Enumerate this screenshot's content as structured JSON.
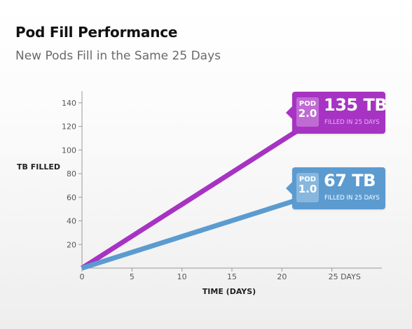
{
  "header": {
    "title": "Pod Fill Performance",
    "subtitle": "New Pods Fill in the Same 25 Days"
  },
  "chart_data": {
    "type": "line",
    "title": "Pod Fill Performance",
    "subtitle": "New Pods Fill in the Same 25 Days",
    "xlabel": "TIME (DAYS)",
    "ylabel": "TB FILLED",
    "xlim": [
      0,
      30
    ],
    "ylim": [
      0,
      150
    ],
    "x_ticks": [
      "0",
      "5",
      "10",
      "15",
      "20",
      "25 DAYS"
    ],
    "y_ticks": [
      "20",
      "40",
      "60",
      "80",
      "100",
      "120",
      "140"
    ],
    "x_tick_values": [
      0,
      5,
      10,
      15,
      20,
      25
    ],
    "y_tick_values": [
      20,
      40,
      60,
      80,
      100,
      120,
      140
    ],
    "grid": false,
    "series": [
      {
        "name": "POD 2.0",
        "color": "#a733c3",
        "x": [
          0,
          25
        ],
        "y": [
          0,
          135
        ]
      },
      {
        "name": "POD 1.0",
        "color": "#5b9bd0",
        "x": [
          0,
          25
        ],
        "y": [
          0,
          67
        ]
      }
    ],
    "annotations": [
      {
        "series": "POD 2.0",
        "badge_line1": "POD",
        "badge_line2": "2.0",
        "value_text": "135 TB",
        "caption": "FILLED IN 25 DAYS",
        "color": "#a733c3",
        "caption_color": "#e9b4f4"
      },
      {
        "series": "POD 1.0",
        "badge_line1": "POD",
        "badge_line2": "1.0",
        "value_text": "67 TB",
        "caption": "FILLED IN 25 DAYS",
        "color": "#5b9bd0",
        "caption_color": "#ffffff"
      }
    ]
  }
}
